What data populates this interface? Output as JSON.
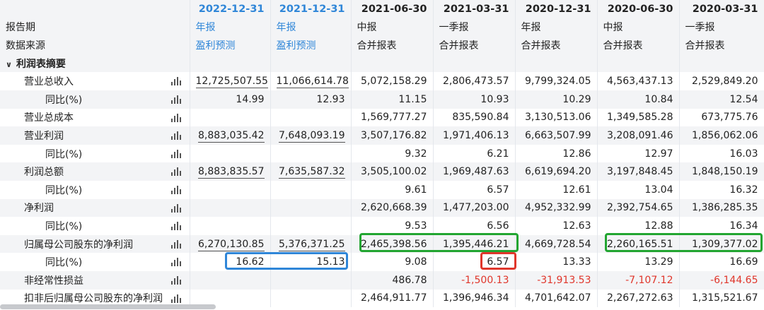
{
  "columns": [
    {
      "date": "2022-12-31",
      "type": "年报",
      "source": "盈利预测",
      "projected": true
    },
    {
      "date": "2021-12-31",
      "type": "年报",
      "source": "盈利预测",
      "projected": true
    },
    {
      "date": "2021-06-30",
      "type": "中报",
      "source": "合并报表",
      "projected": false
    },
    {
      "date": "2021-03-31",
      "type": "一季报",
      "source": "合并报表",
      "projected": false
    },
    {
      "date": "2020-12-31",
      "type": "年报",
      "source": "合并报表",
      "projected": false
    },
    {
      "date": "2020-06-30",
      "type": "中报",
      "source": "合并报表",
      "projected": false
    },
    {
      "date": "2020-03-31",
      "type": "一季报",
      "source": "合并报表",
      "projected": false
    }
  ],
  "labels": {
    "report_period": "报告期",
    "data_source": "数据来源",
    "section": "利润表摘要"
  },
  "rows": [
    {
      "label": "营业总收入",
      "level": 1,
      "chart": true,
      "values": [
        "12,725,507.55",
        "11,066,614.78",
        "5,072,158.29",
        "2,806,473.57",
        "9,799,324.05",
        "4,563,437.13",
        "2,529,849.20"
      ]
    },
    {
      "label": "同比(%)",
      "level": 2,
      "chart": true,
      "values": [
        "14.99",
        "12.93",
        "11.15",
        "10.93",
        "10.29",
        "10.84",
        "12.54"
      ]
    },
    {
      "label": "营业总成本",
      "level": 1,
      "chart": true,
      "values": [
        "",
        "",
        "1,569,777.27",
        "835,590.84",
        "3,130,513.06",
        "1,349,585.28",
        "673,775.76"
      ]
    },
    {
      "label": "营业利润",
      "level": 1,
      "chart": true,
      "values": [
        "8,883,035.42",
        "7,648,093.19",
        "3,507,176.82",
        "1,971,406.13",
        "6,663,507.99",
        "3,208,091.46",
        "1,856,062.06"
      ]
    },
    {
      "label": "同比(%)",
      "level": 2,
      "chart": true,
      "values": [
        "",
        "",
        "9.32",
        "6.21",
        "12.86",
        "12.97",
        "16.03"
      ]
    },
    {
      "label": "利润总额",
      "level": 1,
      "chart": true,
      "values": [
        "8,883,835.57",
        "7,635,587.32",
        "3,505,100.02",
        "1,969,487.63",
        "6,619,694.20",
        "3,197,848.45",
        "1,848,150.19"
      ]
    },
    {
      "label": "同比(%)",
      "level": 2,
      "chart": true,
      "values": [
        "",
        "",
        "9.61",
        "6.57",
        "12.61",
        "13.04",
        "16.32"
      ]
    },
    {
      "label": "净利润",
      "level": 1,
      "chart": true,
      "values": [
        "",
        "",
        "2,620,668.39",
        "1,477,203.00",
        "4,952,332.99",
        "2,392,754.65",
        "1,386,285.35"
      ]
    },
    {
      "label": "同比(%)",
      "level": 2,
      "chart": true,
      "values": [
        "",
        "",
        "9.53",
        "6.56",
        "12.63",
        "12.88",
        "16.34"
      ]
    },
    {
      "label": "归属母公司股东的净利润",
      "level": 1,
      "chart": true,
      "values": [
        "6,270,130.85",
        "5,376,371.25",
        "2,465,398.56",
        "1,395,446.21",
        "4,669,728.54",
        "2,260,165.51",
        "1,309,377.02"
      ]
    },
    {
      "label": "同比(%)",
      "level": 2,
      "chart": true,
      "values": [
        "16.62",
        "15.13",
        "9.08",
        "6.57",
        "13.33",
        "13.29",
        "16.69"
      ]
    },
    {
      "label": "非经常性损益",
      "level": 1,
      "chart": true,
      "values": [
        "",
        "",
        "486.78",
        "-1,500.13",
        "-31,913.53",
        "-7,107.12",
        "-6,144.65"
      ]
    },
    {
      "label": "扣非后归属母公司股东的净利润",
      "level": 1,
      "chart": true,
      "values": [
        "",
        "",
        "2,464,911.77",
        "1,396,946.34",
        "4,701,642.07",
        "2,267,272.63",
        "1,315,521.67"
      ]
    }
  ],
  "colors": {
    "accent": "#2f86d8",
    "negative": "#e0362b",
    "highlight_green": "#22a531",
    "highlight_blue": "#2f86d8",
    "highlight_red": "#e0362b",
    "header_bg": "#f3f4f6"
  },
  "icons": {
    "chart": "bar-chart-icon",
    "expand": "chevron-down-icon"
  }
}
